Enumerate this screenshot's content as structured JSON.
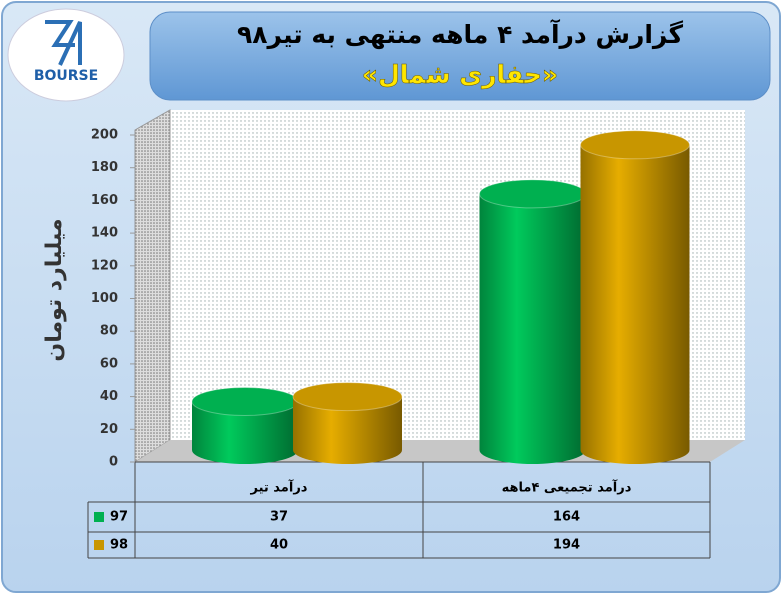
{
  "logo": "BOURSE",
  "chart_data": {
    "type": "bar",
    "title": "گزارش درآمد ۴ ماهه منتهی به تیر۹۸",
    "subtitle": "«حفاری شمال»",
    "y_label": "میلیارد تومان",
    "categories": [
      "درآمد تیر",
      "درآمد تجمیعی ۴ماهه"
    ],
    "series": [
      {
        "name": "97",
        "color": "#00b050",
        "values": [
          37,
          164
        ]
      },
      {
        "name": "98",
        "color": "#c89600",
        "values": [
          40,
          194
        ]
      }
    ],
    "ylim": [
      0,
      200
    ],
    "yticks": [
      0,
      20,
      40,
      60,
      80,
      100,
      120,
      140,
      160,
      180,
      200
    ],
    "data_table": true
  }
}
